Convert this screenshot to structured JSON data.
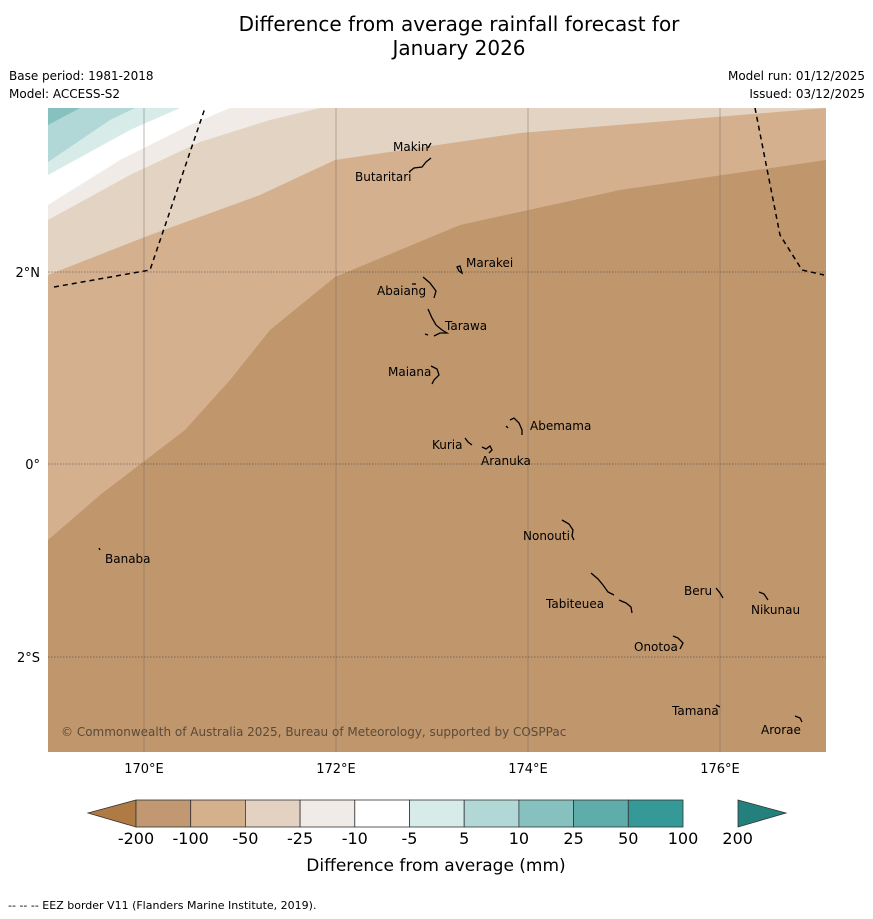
{
  "title_line1": "Difference from average rainfall forecast for",
  "title_line2": "January 2026",
  "base_period": "Base period: 1981-2018",
  "model": "Model: ACCESS-S2",
  "model_run": "Model run: 01/12/2025",
  "issued": "Issued: 03/12/2025",
  "copyright": "© Commonwealth of Australia 2025, Bureau of Meteorology, supported by COSPPac",
  "lon_labels": [
    "170°E",
    "172°E",
    "174°E",
    "176°E"
  ],
  "lat_labels": [
    "2°N",
    "0°",
    "2°S"
  ],
  "islands": [
    "Makin",
    "Butaritari",
    "Marakei",
    "Abaiang",
    "Tarawa",
    "Maiana",
    "Abemama",
    "Kuria",
    "Aranuka",
    "Nonouti",
    "Banaba",
    "Tabiteuea",
    "Beru",
    "Nikunau",
    "Onotoa",
    "Tamana",
    "Arorae"
  ],
  "colorbar": {
    "ticks": [
      "-200",
      "-100",
      "-50",
      "-25",
      "-10",
      "-5",
      "5",
      "10",
      "25",
      "50",
      "100",
      "200"
    ],
    "colors": [
      "#b07a45",
      "#c29872",
      "#d4b08c",
      "#e3d2c2",
      "#f0ebe6",
      "#ffffff",
      "#d7ebe9",
      "#b1d8d6",
      "#86c1bf",
      "#5fadaa",
      "#359a97",
      "#24807c"
    ],
    "label": "Difference from average (mm)"
  },
  "footnote": "-- -- -- EEZ border V11 (Flanders Marine Institute, 2019)."
}
